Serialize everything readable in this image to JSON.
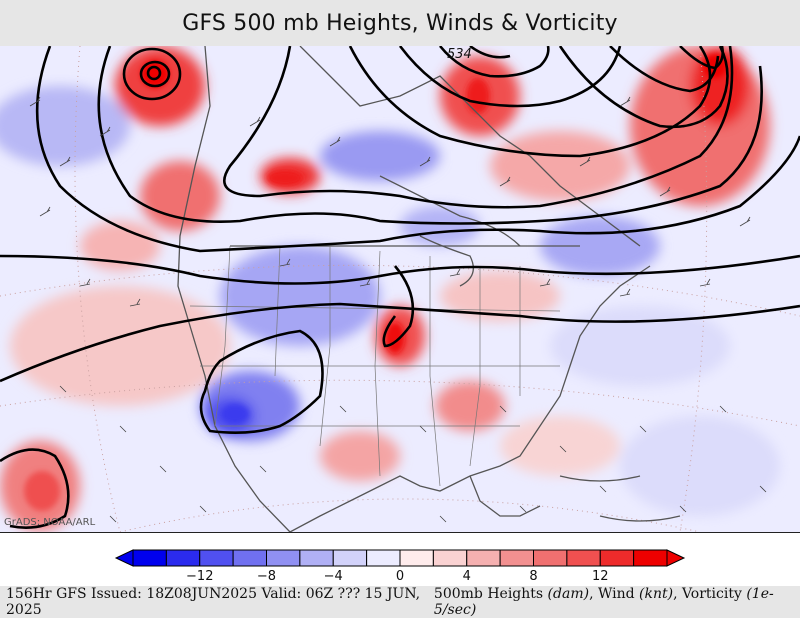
{
  "title": "GFS 500 mb Heights, Winds & Vorticity",
  "credit": "GrADS: NOAA/ARL",
  "contour_label": "534",
  "colorbar": {
    "tick_labels": [
      "−12",
      "−8",
      "−4",
      "0",
      "4",
      "8",
      "12"
    ],
    "colors": [
      "#0000ee",
      "#2b2bee",
      "#5050f0",
      "#7070f0",
      "#9090f2",
      "#b0b0f5",
      "#d2d2fa",
      "#ececff",
      "#ffecec",
      "#fad2d2",
      "#f5b0b0",
      "#f29090",
      "#f07070",
      "#f05050",
      "#ee2b2b",
      "#ee0000"
    ]
  },
  "footer": {
    "left": "156Hr GFS Issued: 18Z08JUN2025 Valid: 06Z ??? 15 JUN, 2025",
    "right_prefix": "500mb Heights ",
    "right_unit1": "(dam)",
    "right_mid1": ", Wind ",
    "right_unit2": "(knt)",
    "right_mid2": ", Vorticity ",
    "right_unit3": "(1e-5/sec)"
  }
}
